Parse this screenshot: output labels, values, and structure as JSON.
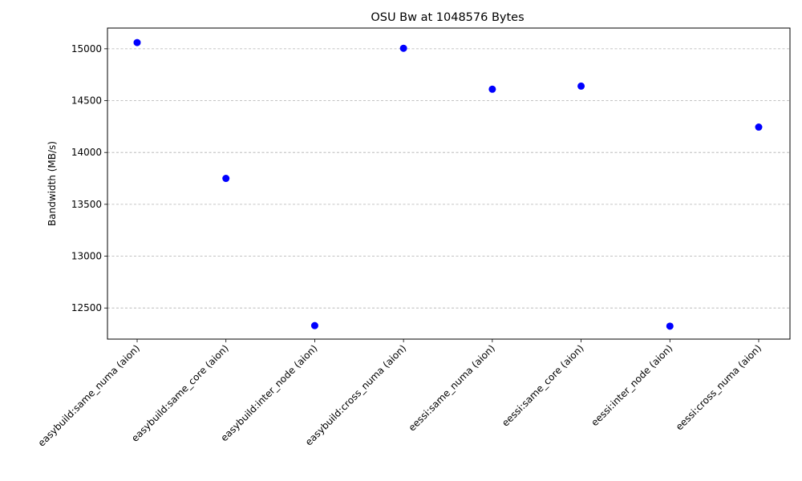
{
  "chart_data": {
    "type": "scatter",
    "title": "OSU Bw at 1048576 Bytes",
    "xlabel": "",
    "ylabel": "Bandwidth (MB/s)",
    "categories": [
      "easybuild:same_numa (aion)",
      "easybuild:same_core (aion)",
      "easybuild:inter_node (aion)",
      "easybuild:cross_numa (aion)",
      "eessi:same_numa (aion)",
      "eessi:same_core (aion)",
      "eessi:inter_node (aion)",
      "eessi:cross_numa (aion)"
    ],
    "values": [
      15060,
      13750,
      12330,
      15005,
      14610,
      14640,
      12325,
      14245
    ],
    "ylim": [
      12200,
      15200
    ],
    "yticks": [
      12500,
      13000,
      13500,
      14000,
      14500,
      15000
    ],
    "grid": "y-dashed",
    "marker_color": "#0000ff"
  }
}
